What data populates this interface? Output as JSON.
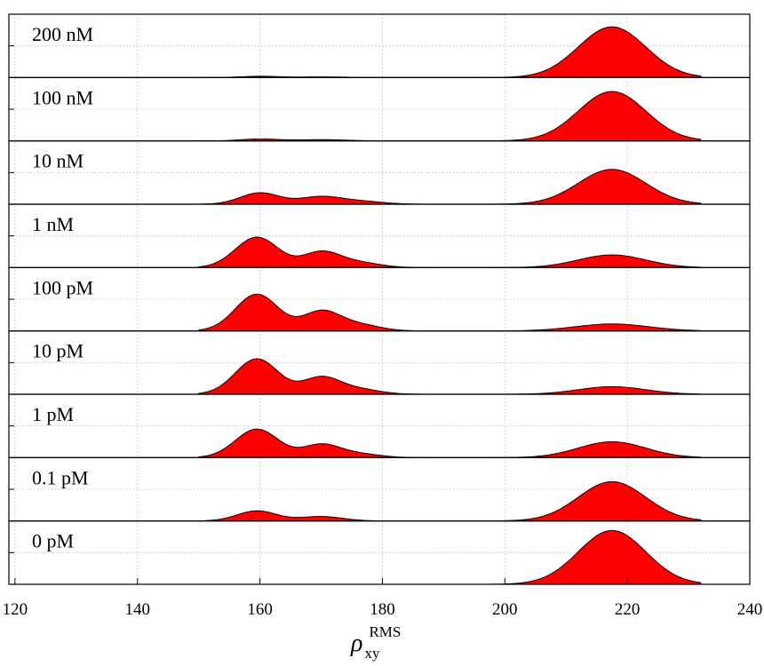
{
  "chart_data": {
    "type": "area",
    "title": "",
    "xlabel": {
      "symbol": "ρ",
      "superscript": "RMS",
      "subscript": "xy"
    },
    "ylabel": "",
    "xlim": [
      119,
      240
    ],
    "xticks": [
      120,
      140,
      160,
      180,
      200,
      220,
      240
    ],
    "grid": true,
    "legend": "none",
    "fill_color": "#ff0000",
    "outline_color": "#000000",
    "series": [
      {
        "name": "200 nM",
        "domain": [
          150,
          232
        ],
        "peaks": [
          {
            "mu": 217.5,
            "sigma": 5.5,
            "h": 0.8
          },
          {
            "mu": 160,
            "sigma": 3,
            "h": 0.02
          },
          {
            "mu": 170,
            "sigma": 4,
            "h": 0.01
          }
        ]
      },
      {
        "name": "100 nM",
        "domain": [
          150,
          232
        ],
        "peaks": [
          {
            "mu": 217.5,
            "sigma": 5.5,
            "h": 0.78
          },
          {
            "mu": 160,
            "sigma": 3,
            "h": 0.03
          },
          {
            "mu": 170,
            "sigma": 4,
            "h": 0.02
          }
        ]
      },
      {
        "name": "10 nM",
        "domain": [
          150,
          232
        ],
        "peaks": [
          {
            "mu": 217.5,
            "sigma": 5.5,
            "h": 0.55
          },
          {
            "mu": 160,
            "sigma": 3.2,
            "h": 0.18
          },
          {
            "mu": 170,
            "sigma": 3.5,
            "h": 0.12
          },
          {
            "mu": 177,
            "sigma": 3.5,
            "h": 0.04
          }
        ]
      },
      {
        "name": "1 nM",
        "domain": [
          150,
          232
        ],
        "peaks": [
          {
            "mu": 217.5,
            "sigma": 5.5,
            "h": 0.2
          },
          {
            "mu": 159.5,
            "sigma": 3.5,
            "h": 0.48
          },
          {
            "mu": 170,
            "sigma": 3.0,
            "h": 0.24
          },
          {
            "mu": 176,
            "sigma": 3.5,
            "h": 0.08
          }
        ]
      },
      {
        "name": "100 pM",
        "domain": [
          150,
          232
        ],
        "peaks": [
          {
            "mu": 217.5,
            "sigma": 6,
            "h": 0.11
          },
          {
            "mu": 159.5,
            "sigma": 3.5,
            "h": 0.58
          },
          {
            "mu": 170,
            "sigma": 3.0,
            "h": 0.3
          },
          {
            "mu": 176,
            "sigma": 3.5,
            "h": 0.1
          }
        ]
      },
      {
        "name": "10 pM",
        "domain": [
          150,
          232
        ],
        "peaks": [
          {
            "mu": 217.5,
            "sigma": 5.5,
            "h": 0.12
          },
          {
            "mu": 159.5,
            "sigma": 3.5,
            "h": 0.56
          },
          {
            "mu": 170,
            "sigma": 3.0,
            "h": 0.26
          },
          {
            "mu": 176,
            "sigma": 3.5,
            "h": 0.08
          }
        ]
      },
      {
        "name": "1 pM",
        "domain": [
          150,
          232
        ],
        "peaks": [
          {
            "mu": 217.5,
            "sigma": 5.5,
            "h": 0.25
          },
          {
            "mu": 159.5,
            "sigma": 3.5,
            "h": 0.45
          },
          {
            "mu": 170,
            "sigma": 3.0,
            "h": 0.2
          },
          {
            "mu": 176,
            "sigma": 3.5,
            "h": 0.06
          }
        ]
      },
      {
        "name": "0.1 pM",
        "domain": [
          150,
          232
        ],
        "peaks": [
          {
            "mu": 217.5,
            "sigma": 5.5,
            "h": 0.62
          },
          {
            "mu": 159.5,
            "sigma": 3.2,
            "h": 0.16
          },
          {
            "mu": 170,
            "sigma": 3.5,
            "h": 0.07
          }
        ]
      },
      {
        "name": "0 pM",
        "domain": [
          150,
          232
        ],
        "peaks": [
          {
            "mu": 217.5,
            "sigma": 5.5,
            "h": 0.85
          }
        ]
      }
    ]
  }
}
